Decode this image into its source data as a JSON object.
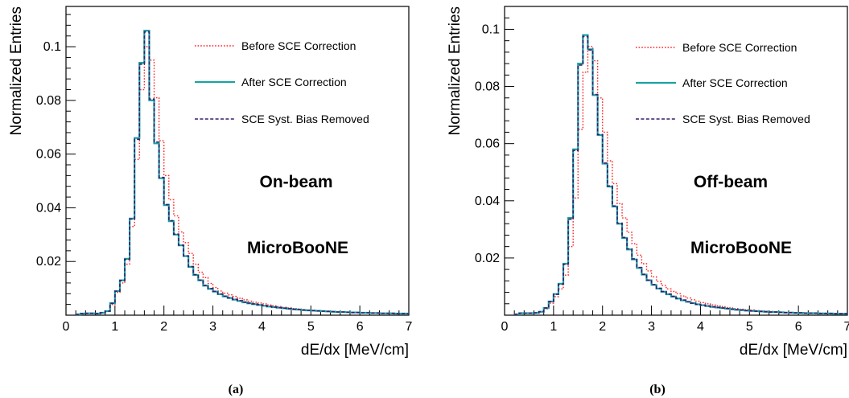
{
  "colors": {
    "before": "#ff2020",
    "after": "#1aa3a3",
    "bias_removed": "#3b1a6e"
  },
  "chart_data": [
    {
      "type": "line",
      "style": "step-histogram",
      "panel_label": "(a)",
      "xlabel": "dE/dx [MeV/cm]",
      "ylabel": "Normalized Entries",
      "xlim": [
        0,
        7
      ],
      "ylim": [
        0,
        0.115
      ],
      "x_ticks": [
        "0",
        "1",
        "2",
        "3",
        "4",
        "5",
        "6",
        "7"
      ],
      "y_ticks": [
        "0.02",
        "0.04",
        "0.06",
        "0.08",
        "0.1"
      ],
      "annotations": [
        "On-beam",
        "MicroBooNE"
      ],
      "legend_placement": "top-right",
      "bin_width": 0.1,
      "x": [
        0.25,
        0.35,
        0.45,
        0.55,
        0.65,
        0.75,
        0.85,
        0.95,
        1.05,
        1.15,
        1.25,
        1.35,
        1.45,
        1.55,
        1.65,
        1.75,
        1.85,
        1.95,
        2.05,
        2.15,
        2.25,
        2.35,
        2.45,
        2.55,
        2.65,
        2.75,
        2.85,
        2.95,
        3.05,
        3.15,
        3.25,
        3.35,
        3.45,
        3.55,
        3.65,
        3.75,
        3.85,
        3.95,
        4.05,
        4.15,
        4.25,
        4.35,
        4.45,
        4.55,
        4.65,
        4.75,
        4.85,
        4.95,
        5.05,
        5.15,
        5.25,
        5.35,
        5.45,
        5.55,
        5.65,
        5.75,
        5.85,
        5.95,
        6.05,
        6.15,
        6.25,
        6.35,
        6.45,
        6.55,
        6.65,
        6.75,
        6.85,
        6.95
      ],
      "series": [
        {
          "name": "Before SCE Correction",
          "line": "dotted",
          "values": [
            0.0003,
            0.0006,
            0.0007,
            0.0007,
            0.0006,
            0.0009,
            0.0015,
            0.004,
            0.0085,
            0.012,
            0.019,
            0.033,
            0.058,
            0.084,
            0.1,
            0.095,
            0.081,
            0.065,
            0.052,
            0.043,
            0.037,
            0.031,
            0.027,
            0.023,
            0.019,
            0.016,
            0.014,
            0.0118,
            0.0103,
            0.009,
            0.0082,
            0.0076,
            0.007,
            0.0063,
            0.0057,
            0.0052,
            0.0048,
            0.0045,
            0.0042,
            0.0038,
            0.0035,
            0.0032,
            0.0029,
            0.0027,
            0.0025,
            0.0023,
            0.0021,
            0.0019,
            0.0018,
            0.0017,
            0.0016,
            0.0015,
            0.0014,
            0.0013,
            0.0012,
            0.0011,
            0.0011,
            0.001,
            0.0009,
            0.0009,
            0.0008,
            0.0008,
            0.0007,
            0.0007,
            0.0007,
            0.0006,
            0.0006,
            0.0006
          ]
        },
        {
          "name": "After SCE Correction",
          "line": "solid",
          "values": [
            0.0003,
            0.0006,
            0.0007,
            0.0007,
            0.0006,
            0.0009,
            0.0015,
            0.0045,
            0.009,
            0.013,
            0.021,
            0.036,
            0.066,
            0.094,
            0.106,
            0.08,
            0.064,
            0.051,
            0.041,
            0.035,
            0.03,
            0.026,
            0.022,
            0.018,
            0.015,
            0.013,
            0.011,
            0.0098,
            0.0088,
            0.0078,
            0.007,
            0.0064,
            0.0058,
            0.0053,
            0.0048,
            0.0044,
            0.0041,
            0.0038,
            0.0035,
            0.0032,
            0.003,
            0.0028,
            0.0026,
            0.0024,
            0.0022,
            0.0021,
            0.0019,
            0.0018,
            0.0017,
            0.0016,
            0.0015,
            0.0014,
            0.0013,
            0.0012,
            0.0012,
            0.0011,
            0.001,
            0.001,
            0.0009,
            0.0009,
            0.0008,
            0.0008,
            0.0007,
            0.0007,
            0.0007,
            0.0006,
            0.0006,
            0.0006
          ]
        },
        {
          "name": "SCE Syst. Bias Removed",
          "line": "dashed",
          "values": [
            0.0003,
            0.0006,
            0.0007,
            0.0007,
            0.0006,
            0.0009,
            0.0015,
            0.0044,
            0.0089,
            0.0129,
            0.0208,
            0.0358,
            0.0655,
            0.0935,
            0.1055,
            0.0805,
            0.0645,
            0.0513,
            0.0412,
            0.0352,
            0.0302,
            0.0261,
            0.0221,
            0.0181,
            0.0151,
            0.0131,
            0.0111,
            0.0099,
            0.0089,
            0.0079,
            0.0071,
            0.0065,
            0.0059,
            0.0054,
            0.0049,
            0.0045,
            0.0042,
            0.0039,
            0.0036,
            0.0033,
            0.003,
            0.0028,
            0.0026,
            0.0024,
            0.0022,
            0.0021,
            0.0019,
            0.0018,
            0.0017,
            0.0016,
            0.0015,
            0.0014,
            0.0013,
            0.0012,
            0.0012,
            0.0011,
            0.001,
            0.001,
            0.0009,
            0.0009,
            0.0008,
            0.0008,
            0.0007,
            0.0007,
            0.0007,
            0.0006,
            0.0006,
            0.0006
          ]
        }
      ]
    },
    {
      "type": "line",
      "style": "step-histogram",
      "panel_label": "(b)",
      "xlabel": "dE/dx [MeV/cm]",
      "ylabel": "Normalized Entries",
      "xlim": [
        0,
        7
      ],
      "ylim": [
        0,
        0.108
      ],
      "x_ticks": [
        "0",
        "1",
        "2",
        "3",
        "4",
        "5",
        "6",
        "7"
      ],
      "y_ticks": [
        "0.02",
        "0.04",
        "0.06",
        "0.08",
        "0.1"
      ],
      "annotations": [
        "Off-beam",
        "MicroBooNE"
      ],
      "legend_placement": "top-right",
      "bin_width": 0.1,
      "x": [
        0.25,
        0.35,
        0.45,
        0.55,
        0.65,
        0.75,
        0.85,
        0.95,
        1.05,
        1.15,
        1.25,
        1.35,
        1.45,
        1.55,
        1.65,
        1.75,
        1.85,
        1.95,
        2.05,
        2.15,
        2.25,
        2.35,
        2.45,
        2.55,
        2.65,
        2.75,
        2.85,
        2.95,
        3.05,
        3.15,
        3.25,
        3.35,
        3.45,
        3.55,
        3.65,
        3.75,
        3.85,
        3.95,
        4.05,
        4.15,
        4.25,
        4.35,
        4.45,
        4.55,
        4.65,
        4.75,
        4.85,
        4.95,
        5.05,
        5.15,
        5.25,
        5.35,
        5.45,
        5.55,
        5.65,
        5.75,
        5.85,
        5.95,
        6.05,
        6.15,
        6.25,
        6.35,
        6.45,
        6.55,
        6.65,
        6.75,
        6.85,
        6.95
      ],
      "series": [
        {
          "name": "Before SCE Correction",
          "line": "dotted",
          "values": [
            0.0003,
            0.0007,
            0.0007,
            0.0007,
            0.0008,
            0.0012,
            0.0022,
            0.0042,
            0.0065,
            0.0092,
            0.014,
            0.024,
            0.041,
            0.065,
            0.085,
            0.094,
            0.089,
            0.076,
            0.064,
            0.054,
            0.046,
            0.039,
            0.034,
            0.029,
            0.025,
            0.021,
            0.018,
            0.0155,
            0.0134,
            0.0118,
            0.0104,
            0.0092,
            0.0083,
            0.0075,
            0.0067,
            0.006,
            0.0054,
            0.0049,
            0.0044,
            0.004,
            0.0036,
            0.0033,
            0.003,
            0.0027,
            0.0025,
            0.0023,
            0.0021,
            0.0019,
            0.0018,
            0.0016,
            0.0015,
            0.0014,
            0.0013,
            0.0012,
            0.0011,
            0.001,
            0.001,
            0.0009,
            0.0009,
            0.0008,
            0.0008,
            0.0007,
            0.0007,
            0.0007,
            0.0006,
            0.0006,
            0.0006,
            0.0005
          ]
        },
        {
          "name": "After SCE Correction",
          "line": "solid",
          "values": [
            0.0003,
            0.0007,
            0.0007,
            0.0007,
            0.0008,
            0.0012,
            0.0025,
            0.0048,
            0.0074,
            0.011,
            0.018,
            0.034,
            0.058,
            0.088,
            0.098,
            0.093,
            0.077,
            0.063,
            0.053,
            0.045,
            0.038,
            0.032,
            0.027,
            0.023,
            0.0195,
            0.0165,
            0.0142,
            0.0122,
            0.0106,
            0.0093,
            0.0082,
            0.0073,
            0.0065,
            0.0058,
            0.0052,
            0.0047,
            0.0042,
            0.0038,
            0.0035,
            0.0032,
            0.0029,
            0.0027,
            0.0025,
            0.0023,
            0.0021,
            0.0019,
            0.0018,
            0.0016,
            0.0015,
            0.0014,
            0.0013,
            0.0012,
            0.0011,
            0.0011,
            0.001,
            0.0009,
            0.0009,
            0.0008,
            0.0008,
            0.0007,
            0.0007,
            0.0007,
            0.0006,
            0.0006,
            0.0006,
            0.0005,
            0.0005,
            0.0005
          ]
        },
        {
          "name": "SCE Syst. Bias Removed",
          "line": "dashed",
          "values": [
            0.0003,
            0.0007,
            0.0007,
            0.0007,
            0.0008,
            0.0012,
            0.0025,
            0.0047,
            0.0073,
            0.0108,
            0.0178,
            0.0336,
            0.0576,
            0.0875,
            0.0975,
            0.0928,
            0.0772,
            0.0632,
            0.0532,
            0.0452,
            0.0382,
            0.0322,
            0.0272,
            0.0232,
            0.0197,
            0.0167,
            0.0143,
            0.0123,
            0.0107,
            0.0094,
            0.0083,
            0.0074,
            0.0066,
            0.0059,
            0.0053,
            0.0047,
            0.0042,
            0.0038,
            0.0035,
            0.0032,
            0.0029,
            0.0027,
            0.0025,
            0.0023,
            0.0021,
            0.0019,
            0.0018,
            0.0016,
            0.0015,
            0.0014,
            0.0013,
            0.0012,
            0.0011,
            0.0011,
            0.001,
            0.0009,
            0.0009,
            0.0008,
            0.0008,
            0.0007,
            0.0007,
            0.0007,
            0.0006,
            0.0006,
            0.0006,
            0.0005,
            0.0005,
            0.0005
          ]
        }
      ]
    }
  ]
}
